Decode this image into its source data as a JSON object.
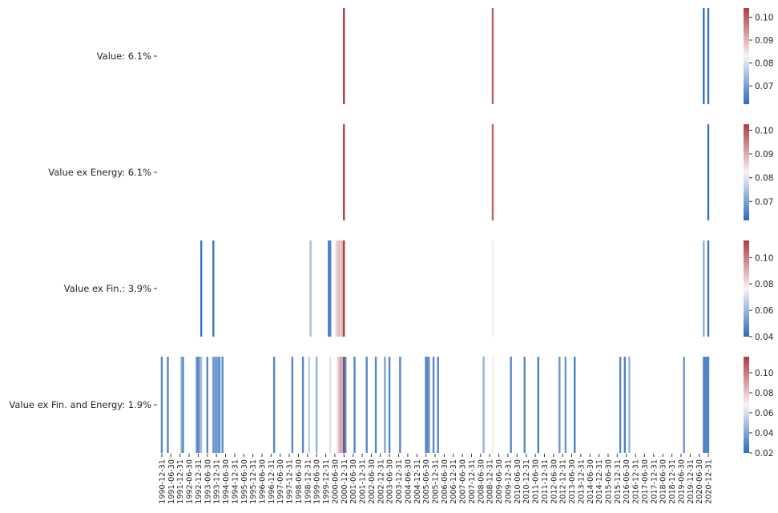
{
  "chart_data": [
    {
      "type": "heatmap",
      "row_label": "Value: 6.1%",
      "colorbar": {
        "range": [
          0.062,
          0.104
        ],
        "ticks": [
          "0.07",
          "0.08",
          "0.09",
          "0.10"
        ]
      },
      "cells": [
        [
          "2000-12",
          0.104
        ],
        [
          "2009-02",
          0.1
        ],
        [
          "2020-09",
          0.063
        ],
        [
          "2020-12",
          0.063
        ]
      ]
    },
    {
      "type": "heatmap",
      "row_label": "Value ex Energy: 6.1%",
      "colorbar": {
        "range": [
          0.062,
          0.1025
        ],
        "ticks": [
          "0.07",
          "0.08",
          "0.09",
          "0.10"
        ]
      },
      "cells": [
        [
          "2000-12",
          0.102
        ],
        [
          "2009-02",
          0.098
        ],
        [
          "2020-12",
          0.063
        ]
      ]
    },
    {
      "type": "heatmap",
      "row_label": "Value ex Fin.: 3.9%",
      "colorbar": {
        "range": [
          0.04,
          0.113
        ],
        "ticks": [
          "0.04",
          "0.06",
          "0.08",
          "0.10"
        ]
      },
      "cells": [
        [
          "1993-02",
          0.042
        ],
        [
          "1993-10",
          0.043
        ],
        [
          "1999-02",
          0.062
        ],
        [
          "2000-02",
          0.045
        ],
        [
          "2000-03",
          0.046
        ],
        [
          "2000-07",
          0.082
        ],
        [
          "2000-08",
          0.085
        ],
        [
          "2000-09",
          0.088
        ],
        [
          "2000-10",
          0.083
        ],
        [
          "2000-11",
          0.09
        ],
        [
          "2000-12",
          0.112
        ],
        [
          "2009-02",
          0.078
        ],
        [
          "2020-09",
          0.058
        ],
        [
          "2020-12",
          0.043
        ]
      ]
    },
    {
      "type": "heatmap",
      "row_label": "Value ex Fin. and Energy: 1.9%",
      "colorbar": {
        "range": [
          0.02,
          0.116
        ],
        "ticks": [
          "0.02",
          "0.04",
          "0.06",
          "0.08",
          "0.10"
        ]
      },
      "cells": [
        [
          "1990-12",
          0.03
        ],
        [
          "1991-04",
          0.03
        ],
        [
          "1992-01",
          0.045
        ],
        [
          "1992-02",
          0.03
        ],
        [
          "1992-11",
          0.035
        ],
        [
          "1992-12",
          0.03
        ],
        [
          "1993-01",
          0.04
        ],
        [
          "1993-02",
          0.05
        ],
        [
          "1993-06",
          0.03
        ],
        [
          "1993-10",
          0.035
        ],
        [
          "1993-11",
          0.04
        ],
        [
          "1993-12",
          0.035
        ],
        [
          "1994-01",
          0.04
        ],
        [
          "1994-02",
          0.03
        ],
        [
          "1994-04",
          0.03
        ],
        [
          "1997-02",
          0.03
        ],
        [
          "1998-02",
          0.03
        ],
        [
          "1998-09",
          0.03
        ],
        [
          "1999-01",
          0.055
        ],
        [
          "1999-06",
          0.045
        ],
        [
          "2000-03",
          0.062
        ],
        [
          "2000-08",
          0.075
        ],
        [
          "2000-09",
          0.082
        ],
        [
          "2000-10",
          0.09
        ],
        [
          "2000-11",
          0.05
        ],
        [
          "2000-12",
          0.116
        ],
        [
          "2001-01",
          0.03
        ],
        [
          "2001-07",
          0.03
        ],
        [
          "2002-03",
          0.03
        ],
        [
          "2002-09",
          0.03
        ],
        [
          "2003-03",
          0.04
        ],
        [
          "2003-06",
          0.03
        ],
        [
          "2004-01",
          0.03
        ],
        [
          "2005-06",
          0.03
        ],
        [
          "2005-07",
          0.03
        ],
        [
          "2005-08",
          0.035
        ],
        [
          "2005-11",
          0.03
        ],
        [
          "2006-02",
          0.03
        ],
        [
          "2008-08",
          0.045
        ],
        [
          "2009-02",
          0.07
        ],
        [
          "2010-02",
          0.03
        ],
        [
          "2010-11",
          0.03
        ],
        [
          "2011-08",
          0.028
        ],
        [
          "2012-10",
          0.035
        ],
        [
          "2013-02",
          0.035
        ],
        [
          "2013-08",
          0.028
        ],
        [
          "2016-02",
          0.03
        ],
        [
          "2016-05",
          0.028
        ],
        [
          "2016-08",
          0.045
        ],
        [
          "2019-08",
          0.035
        ],
        [
          "2020-09",
          0.03
        ],
        [
          "2020-10",
          0.028
        ],
        [
          "2020-11",
          0.03
        ],
        [
          "2020-12",
          0.028
        ]
      ]
    }
  ],
  "x_range": [
    "1990-12",
    "2020-12"
  ],
  "x_tick_labels": [
    "1990-12-31",
    "1991-06-30",
    "1991-12-31",
    "1992-06-30",
    "1992-12-31",
    "1993-06-30",
    "1993-12-31",
    "1994-06-30",
    "1994-12-31",
    "1995-06-30",
    "1995-12-31",
    "1996-06-30",
    "1996-12-31",
    "1997-06-30",
    "1997-12-31",
    "1998-06-30",
    "1998-12-31",
    "1999-06-30",
    "1999-12-31",
    "2000-06-30",
    "2000-12-31",
    "2001-06-30",
    "2001-12-31",
    "2002-06-30",
    "2002-12-31",
    "2003-06-30",
    "2003-12-31",
    "2004-06-30",
    "2004-12-31",
    "2005-06-30",
    "2005-12-31",
    "2006-06-30",
    "2006-12-31",
    "2007-06-30",
    "2007-12-31",
    "2008-06-30",
    "2008-12-31",
    "2009-06-30",
    "2009-12-31",
    "2010-06-30",
    "2010-12-31",
    "2011-06-30",
    "2011-12-31",
    "2012-06-30",
    "2012-12-31",
    "2013-06-30",
    "2013-12-31",
    "2014-06-30",
    "2014-12-31",
    "2015-06-30",
    "2015-12-31",
    "2016-06-30",
    "2016-12-31",
    "2017-06-30",
    "2017-12-31",
    "2018-06-30",
    "2018-12-31",
    "2019-06-30",
    "2019-12-31",
    "2020-06-30",
    "2020-12-31"
  ],
  "colormap": {
    "low": "#2a6bbd",
    "mid": "#f7f4f4",
    "high": "#b03a42"
  }
}
